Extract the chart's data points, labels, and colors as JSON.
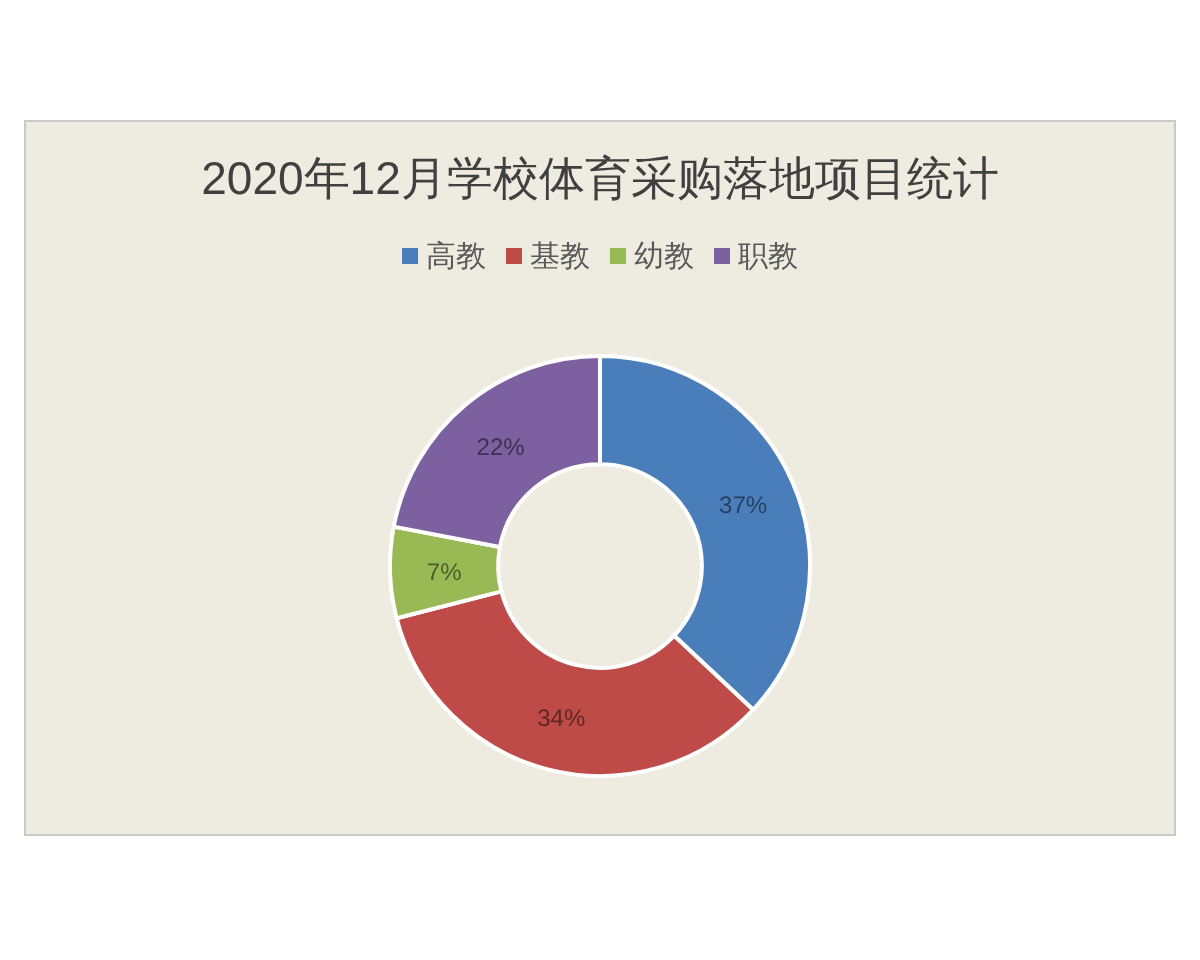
{
  "chart_data": {
    "type": "donut",
    "title": "2020年12月学校体育采购落地项目统计",
    "categories": [
      "高教",
      "基教",
      "幼教",
      "职教"
    ],
    "values": [
      37,
      34,
      7,
      22
    ],
    "colors": [
      "#4a7ebb",
      "#be4b48",
      "#98b954",
      "#7d60a0"
    ],
    "value_labels": [
      "37%",
      "34%",
      "7%",
      "22%"
    ],
    "legend": "top"
  }
}
